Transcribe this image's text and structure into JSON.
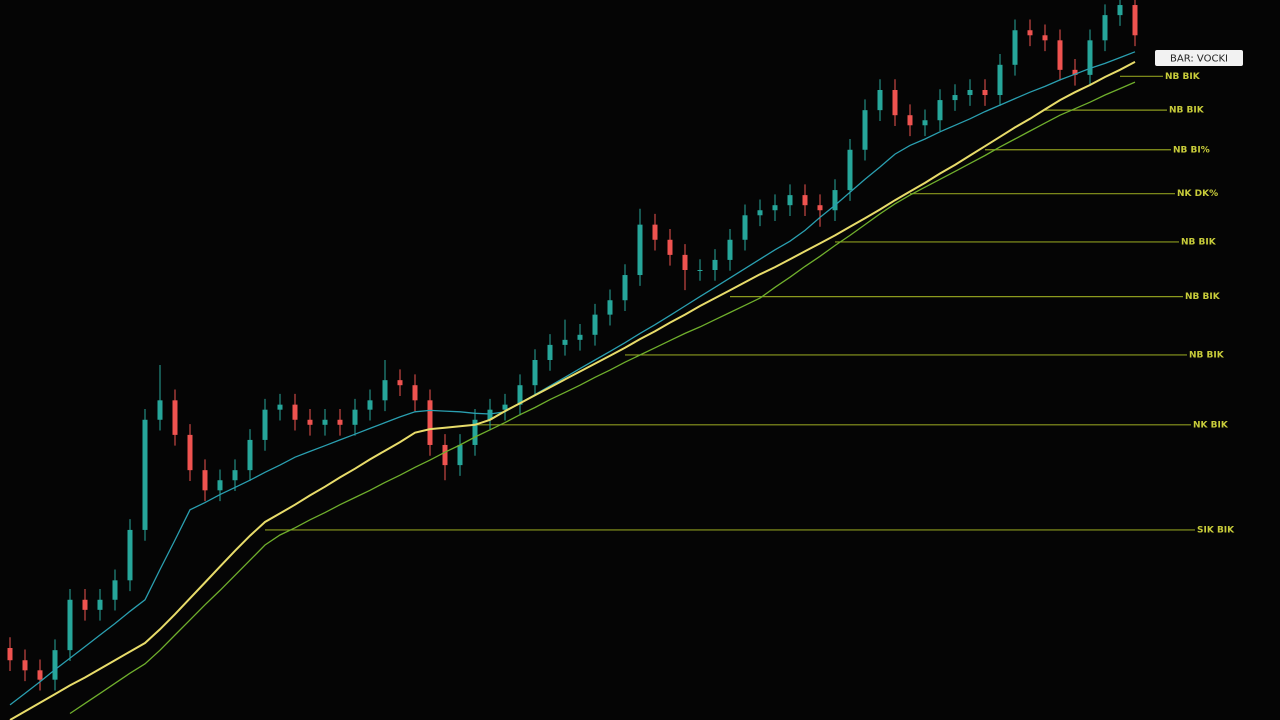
{
  "chart_data": {
    "type": "candlestick",
    "ylim": [
      0,
      100
    ],
    "up_color": "#26a69a",
    "down_color": "#ef5350",
    "candles": {
      "open": [
        10.0,
        8.3,
        6.9,
        5.6,
        9.7,
        16.7,
        15.3,
        16.7,
        19.4,
        26.4,
        41.7,
        44.4,
        39.6,
        34.7,
        31.9,
        33.3,
        34.7,
        38.9,
        43.1,
        43.8,
        41.7,
        41.0,
        41.7,
        41.0,
        43.1,
        44.4,
        47.2,
        46.5,
        44.4,
        38.2,
        35.4,
        38.2,
        41.7,
        43.1,
        43.8,
        46.5,
        50.0,
        52.1,
        52.8,
        53.5,
        56.3,
        58.3,
        61.8,
        68.8,
        66.7,
        64.6,
        62.5,
        62.5,
        63.9,
        66.7,
        70.1,
        70.8,
        71.5,
        72.9,
        71.5,
        70.8,
        73.6,
        79.2,
        84.7,
        87.5,
        84.0,
        82.6,
        83.3,
        86.1,
        86.8,
        87.5,
        86.8,
        91.0,
        95.8,
        95.1,
        94.4,
        90.3,
        89.6,
        94.4,
        97.9,
        99.3
      ],
      "high": [
        11.5,
        9.8,
        8.4,
        11.2,
        18.2,
        18.2,
        18.2,
        20.9,
        27.9,
        43.2,
        49.3,
        45.9,
        41.1,
        36.2,
        34.8,
        36.2,
        40.4,
        44.6,
        45.3,
        45.3,
        43.2,
        43.2,
        43.2,
        44.6,
        45.9,
        50.0,
        48.7,
        48.0,
        45.9,
        39.7,
        39.7,
        43.2,
        44.6,
        45.3,
        48.0,
        51.5,
        53.6,
        55.6,
        55.0,
        57.8,
        59.8,
        63.3,
        71.0,
        70.3,
        68.2,
        66.1,
        64.0,
        65.4,
        68.2,
        71.6,
        72.3,
        73.0,
        74.4,
        74.4,
        73.0,
        75.1,
        80.7,
        86.2,
        89.0,
        89.0,
        85.5,
        84.8,
        87.6,
        88.3,
        89.0,
        89.0,
        92.5,
        97.3,
        97.3,
        96.6,
        95.9,
        91.8,
        95.9,
        99.4,
        100.0,
        100.0
      ],
      "low": [
        6.8,
        5.4,
        4.1,
        4.1,
        8.2,
        13.8,
        13.8,
        15.2,
        17.9,
        24.9,
        40.2,
        38.1,
        33.2,
        30.4,
        30.4,
        31.8,
        33.2,
        37.4,
        41.6,
        40.2,
        39.5,
        39.5,
        39.5,
        39.5,
        41.6,
        42.9,
        45.0,
        42.9,
        36.7,
        33.3,
        33.9,
        36.7,
        40.2,
        41.6,
        42.3,
        45.0,
        48.5,
        50.6,
        51.3,
        52.0,
        54.8,
        56.8,
        60.3,
        65.2,
        63.1,
        59.7,
        61.0,
        61.0,
        62.4,
        65.2,
        68.6,
        69.3,
        70.0,
        70.0,
        68.5,
        69.3,
        72.1,
        77.7,
        83.2,
        82.5,
        81.1,
        81.1,
        81.8,
        84.6,
        85.3,
        85.3,
        85.3,
        89.5,
        93.6,
        92.9,
        88.8,
        88.1,
        88.1,
        92.9,
        96.4,
        93.6
      ],
      "close": [
        8.3,
        6.9,
        5.6,
        9.7,
        16.7,
        15.3,
        16.7,
        19.4,
        26.4,
        41.7,
        44.4,
        39.6,
        34.7,
        31.9,
        33.3,
        34.7,
        38.9,
        43.1,
        43.8,
        41.7,
        41.0,
        41.7,
        41.0,
        43.1,
        44.4,
        47.2,
        46.5,
        44.4,
        38.2,
        35.4,
        38.2,
        41.7,
        43.1,
        43.8,
        46.5,
        50.0,
        52.1,
        52.8,
        53.5,
        56.3,
        58.3,
        61.8,
        68.8,
        66.7,
        64.6,
        62.5,
        62.5,
        63.9,
        66.7,
        70.1,
        70.8,
        71.5,
        72.9,
        71.5,
        70.8,
        73.6,
        79.2,
        84.7,
        87.5,
        84.0,
        82.6,
        83.3,
        86.1,
        86.8,
        87.5,
        86.8,
        91.0,
        95.8,
        95.1,
        94.4,
        90.3,
        89.6,
        94.4,
        97.9,
        99.3,
        95.1
      ]
    },
    "lines": [
      {
        "color": "#2a9fb0",
        "values": [
          2.1,
          3.7,
          5.3,
          7.0,
          8.6,
          10.2,
          11.8,
          13.4,
          15.1,
          16.7,
          20.9,
          25.0,
          29.2,
          30.2,
          31.3,
          32.3,
          33.3,
          34.4,
          35.4,
          36.5,
          37.3,
          38.1,
          38.9,
          39.7,
          40.5,
          41.3,
          42.1,
          42.8,
          43.0,
          42.9,
          42.8,
          42.6,
          42.5,
          42.8,
          44.0,
          45.2,
          46.4,
          47.6,
          48.8,
          50.0,
          51.2,
          52.4,
          53.7,
          54.9,
          56.2,
          57.5,
          58.8,
          60.1,
          61.4,
          62.7,
          64.0,
          65.3,
          66.5,
          68.0,
          69.8,
          71.5,
          73.3,
          75.1,
          76.8,
          78.6,
          79.8,
          80.7,
          81.7,
          82.6,
          83.5,
          84.5,
          85.4,
          86.3,
          87.2,
          88.0,
          88.9,
          89.7,
          90.5,
          91.2,
          92.0,
          92.8
        ]
      },
      {
        "color": "#e8dc6a",
        "values": [
          0.0,
          1.2,
          2.4,
          3.6,
          4.8,
          5.9,
          7.1,
          8.3,
          9.5,
          10.7,
          12.6,
          14.7,
          16.9,
          19.1,
          21.3,
          23.5,
          25.6,
          27.5,
          28.7,
          29.9,
          31.2,
          32.4,
          33.7,
          34.9,
          36.2,
          37.4,
          38.6,
          39.9,
          40.4,
          40.6,
          40.8,
          41.0,
          41.7,
          42.9,
          44.0,
          45.1,
          46.2,
          47.3,
          48.4,
          49.5,
          50.6,
          51.7,
          52.9,
          54.0,
          55.2,
          56.3,
          57.5,
          58.6,
          59.7,
          60.8,
          61.9,
          62.9,
          64.0,
          65.1,
          66.2,
          67.3,
          68.5,
          69.7,
          70.9,
          72.2,
          73.4,
          74.6,
          75.9,
          77.1,
          78.4,
          79.7,
          81.0,
          82.3,
          83.5,
          84.8,
          86.1,
          87.2,
          88.2,
          89.3,
          90.3,
          91.4
        ]
      },
      {
        "color": "#6fae2c",
        "values": [
          null,
          null,
          null,
          null,
          0.9,
          2.3,
          3.7,
          5.1,
          6.5,
          7.8,
          9.7,
          11.8,
          13.9,
          16.0,
          18.0,
          20.1,
          22.2,
          24.3,
          25.7,
          26.7,
          27.8,
          28.8,
          29.9,
          30.9,
          31.9,
          33.0,
          34.0,
          35.1,
          36.1,
          37.2,
          38.2,
          39.3,
          40.3,
          41.3,
          42.4,
          43.4,
          44.5,
          45.5,
          46.5,
          47.6,
          48.6,
          49.7,
          50.7,
          51.7,
          52.7,
          53.7,
          54.6,
          55.6,
          56.6,
          57.6,
          58.6,
          60.1,
          61.5,
          63.0,
          64.4,
          65.9,
          67.3,
          68.8,
          70.3,
          71.7,
          72.9,
          74.0,
          75.1,
          76.2,
          77.3,
          78.4,
          79.6,
          80.7,
          81.8,
          82.9,
          84.0,
          84.9,
          85.8,
          86.8,
          87.7,
          88.6
        ]
      }
    ],
    "level_color": "#8c9a1e",
    "levels": [
      {
        "value": 89.4,
        "label": "NB BIK"
      },
      {
        "value": 84.7,
        "label": "NB BIK"
      },
      {
        "value": 79.2,
        "label": "NB BI%"
      },
      {
        "value": 73.1,
        "label": "NK DK%"
      },
      {
        "value": 66.4,
        "label": "NB BIK"
      },
      {
        "value": 58.8,
        "label": "NB BIK"
      },
      {
        "value": 50.7,
        "label": "NB BIK"
      },
      {
        "value": 41.0,
        "label": "NK BIK"
      },
      {
        "value": 26.4,
        "label": "SIK BIK"
      }
    ],
    "tag": "BAR: VOCKI"
  }
}
